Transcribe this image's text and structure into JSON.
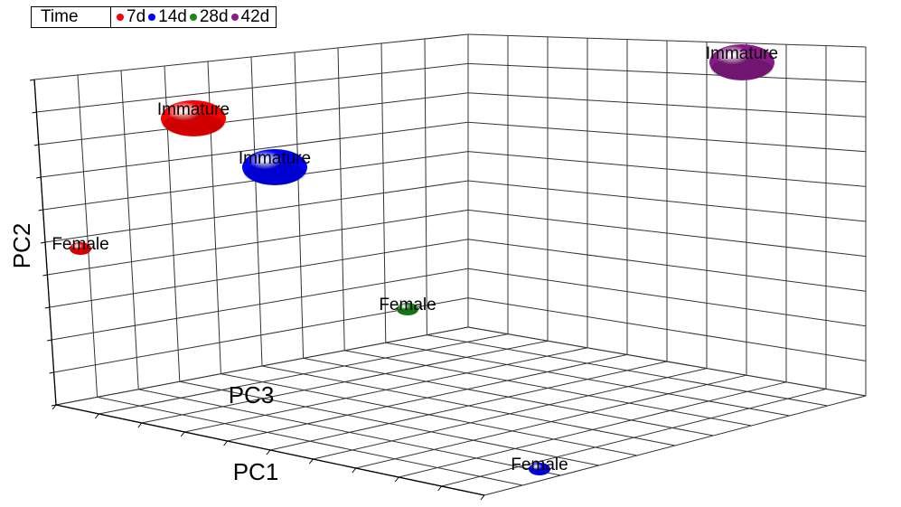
{
  "legend": {
    "title": "Time",
    "entries": [
      {
        "name": "7d",
        "color": "#ff0000"
      },
      {
        "name": "14d",
        "color": "#0000ff"
      },
      {
        "name": "28d",
        "color": "#1a8a1a"
      },
      {
        "name": "42d",
        "color": "#8a1a8a"
      }
    ]
  },
  "chart_data": {
    "type": "scatter",
    "projection": "3d",
    "title": "",
    "axes": {
      "x": "PC1",
      "y": "PC2",
      "z": "PC3"
    },
    "grid": true,
    "legend_position": "top-left",
    "points": [
      {
        "label": "Immature",
        "group": "7d",
        "color": "#ff0000",
        "size": "large"
      },
      {
        "label": "Immature",
        "group": "14d",
        "color": "#0000ff",
        "size": "large"
      },
      {
        "label": "Immature",
        "group": "42d",
        "color": "#8a1a8a",
        "size": "large"
      },
      {
        "label": "Female",
        "group": "7d",
        "color": "#ff0000",
        "size": "small"
      },
      {
        "label": "Female",
        "group": "28d",
        "color": "#1a8a1a",
        "size": "small"
      },
      {
        "label": "Female",
        "group": "14d",
        "color": "#0000ff",
        "size": "small"
      }
    ]
  }
}
